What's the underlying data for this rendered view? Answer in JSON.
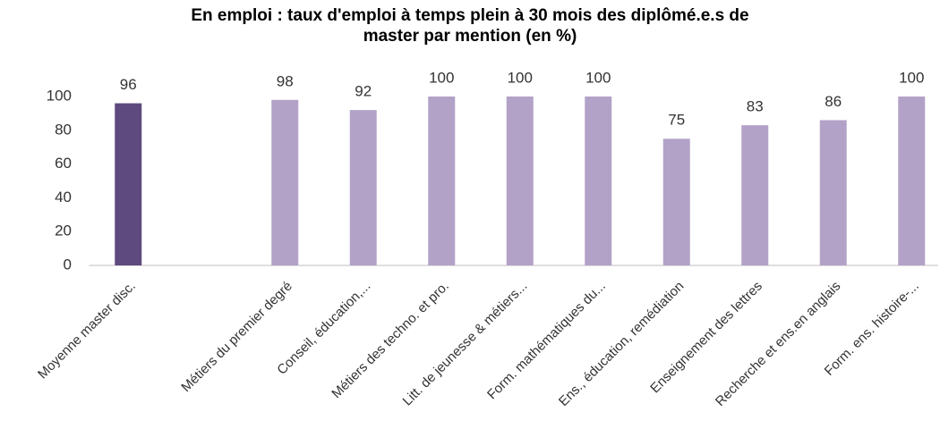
{
  "chart_data": {
    "type": "bar",
    "title": "En emploi : taux d'emploi à temps plein à 30 mois des diplômé.e.s de master par mention (en %)",
    "categories": [
      "Moyenne master disc.",
      null,
      "Métiers du premier degré",
      "Conseil, éducation,...",
      "Métiers des techno. et pro.",
      "Litt. de jeunesse & métiers...",
      "Form. mathématiques du...",
      "Ens., éducation, remédiation",
      "Enseignement des lettres",
      "Recherche et ens.en anglais",
      "Form. ens. histoire-..."
    ],
    "values": [
      96,
      null,
      98,
      92,
      100,
      100,
      100,
      75,
      83,
      86,
      100
    ],
    "colors": [
      "#5f4a7f",
      null,
      "#b3a2c8",
      "#b3a2c8",
      "#b3a2c8",
      "#b3a2c8",
      "#b3a2c8",
      "#b3a2c8",
      "#b3a2c8",
      "#b3a2c8",
      "#b3a2c8"
    ],
    "ylim": [
      0,
      100
    ],
    "yticks": [
      0,
      20,
      40,
      60,
      80,
      100
    ],
    "grid": false
  }
}
